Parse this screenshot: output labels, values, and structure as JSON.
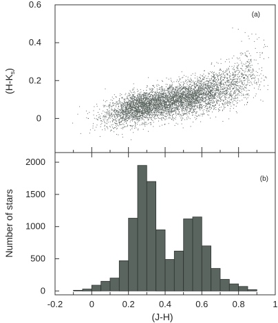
{
  "chart_data": [
    {
      "panel_label": "(a)",
      "type": "scatter",
      "ylabel": "(H-K",
      "ylabel_subscript": "s",
      "ylabel_close": ")",
      "xlim": [
        -0.2,
        1.0
      ],
      "ylim": [
        -0.18,
        0.6
      ],
      "yticks": [
        0,
        0.2,
        0.4,
        0.6
      ],
      "ytick_labels": [
        "0",
        "0.2",
        "0.4",
        "0.6"
      ],
      "point_color": "#5b6560",
      "points_description": "dense cloud of several thousand stars",
      "clusters": [
        {
          "x_center": 0.27,
          "y_center": 0.065,
          "x_spread": 0.1,
          "y_spread": 0.04,
          "count": 2600
        },
        {
          "x_center": 0.53,
          "y_center": 0.11,
          "x_spread": 0.1,
          "y_spread": 0.045,
          "count": 2300
        },
        {
          "x_center": 0.74,
          "y_center": 0.17,
          "x_spread": 0.08,
          "y_spread": 0.06,
          "count": 700
        },
        {
          "x_center": 0.86,
          "y_center": 0.28,
          "x_spread": 0.04,
          "y_spread": 0.07,
          "count": 140
        }
      ]
    },
    {
      "panel_label": "(b)",
      "type": "bar",
      "xlabel": "(J-H)",
      "ylabel": "Number of stars",
      "xlim": [
        -0.2,
        1.0
      ],
      "ylim": [
        -60,
        2150
      ],
      "xticks": [
        -0.2,
        0,
        0.2,
        0.4,
        0.6,
        0.8,
        1
      ],
      "xtick_labels": [
        "-0.2",
        "0",
        "0.2",
        "0.4",
        "0.6",
        "0.8",
        "1"
      ],
      "yticks": [
        0,
        500,
        1000,
        1500,
        2000
      ],
      "ytick_labels": [
        "0",
        "500",
        "1000",
        "1500",
        "2000"
      ],
      "bar_color": "#5b6560",
      "bin_width": 0.05,
      "bin_edges_start": [
        -0.1,
        -0.05,
        0.0,
        0.05,
        0.1,
        0.15,
        0.2,
        0.25,
        0.3,
        0.35,
        0.4,
        0.45,
        0.5,
        0.55,
        0.6,
        0.65,
        0.7,
        0.75,
        0.8,
        0.85
      ],
      "values": [
        10,
        30,
        90,
        150,
        200,
        470,
        1130,
        1950,
        1700,
        950,
        490,
        620,
        1120,
        1150,
        700,
        350,
        180,
        110,
        70,
        20
      ]
    }
  ]
}
